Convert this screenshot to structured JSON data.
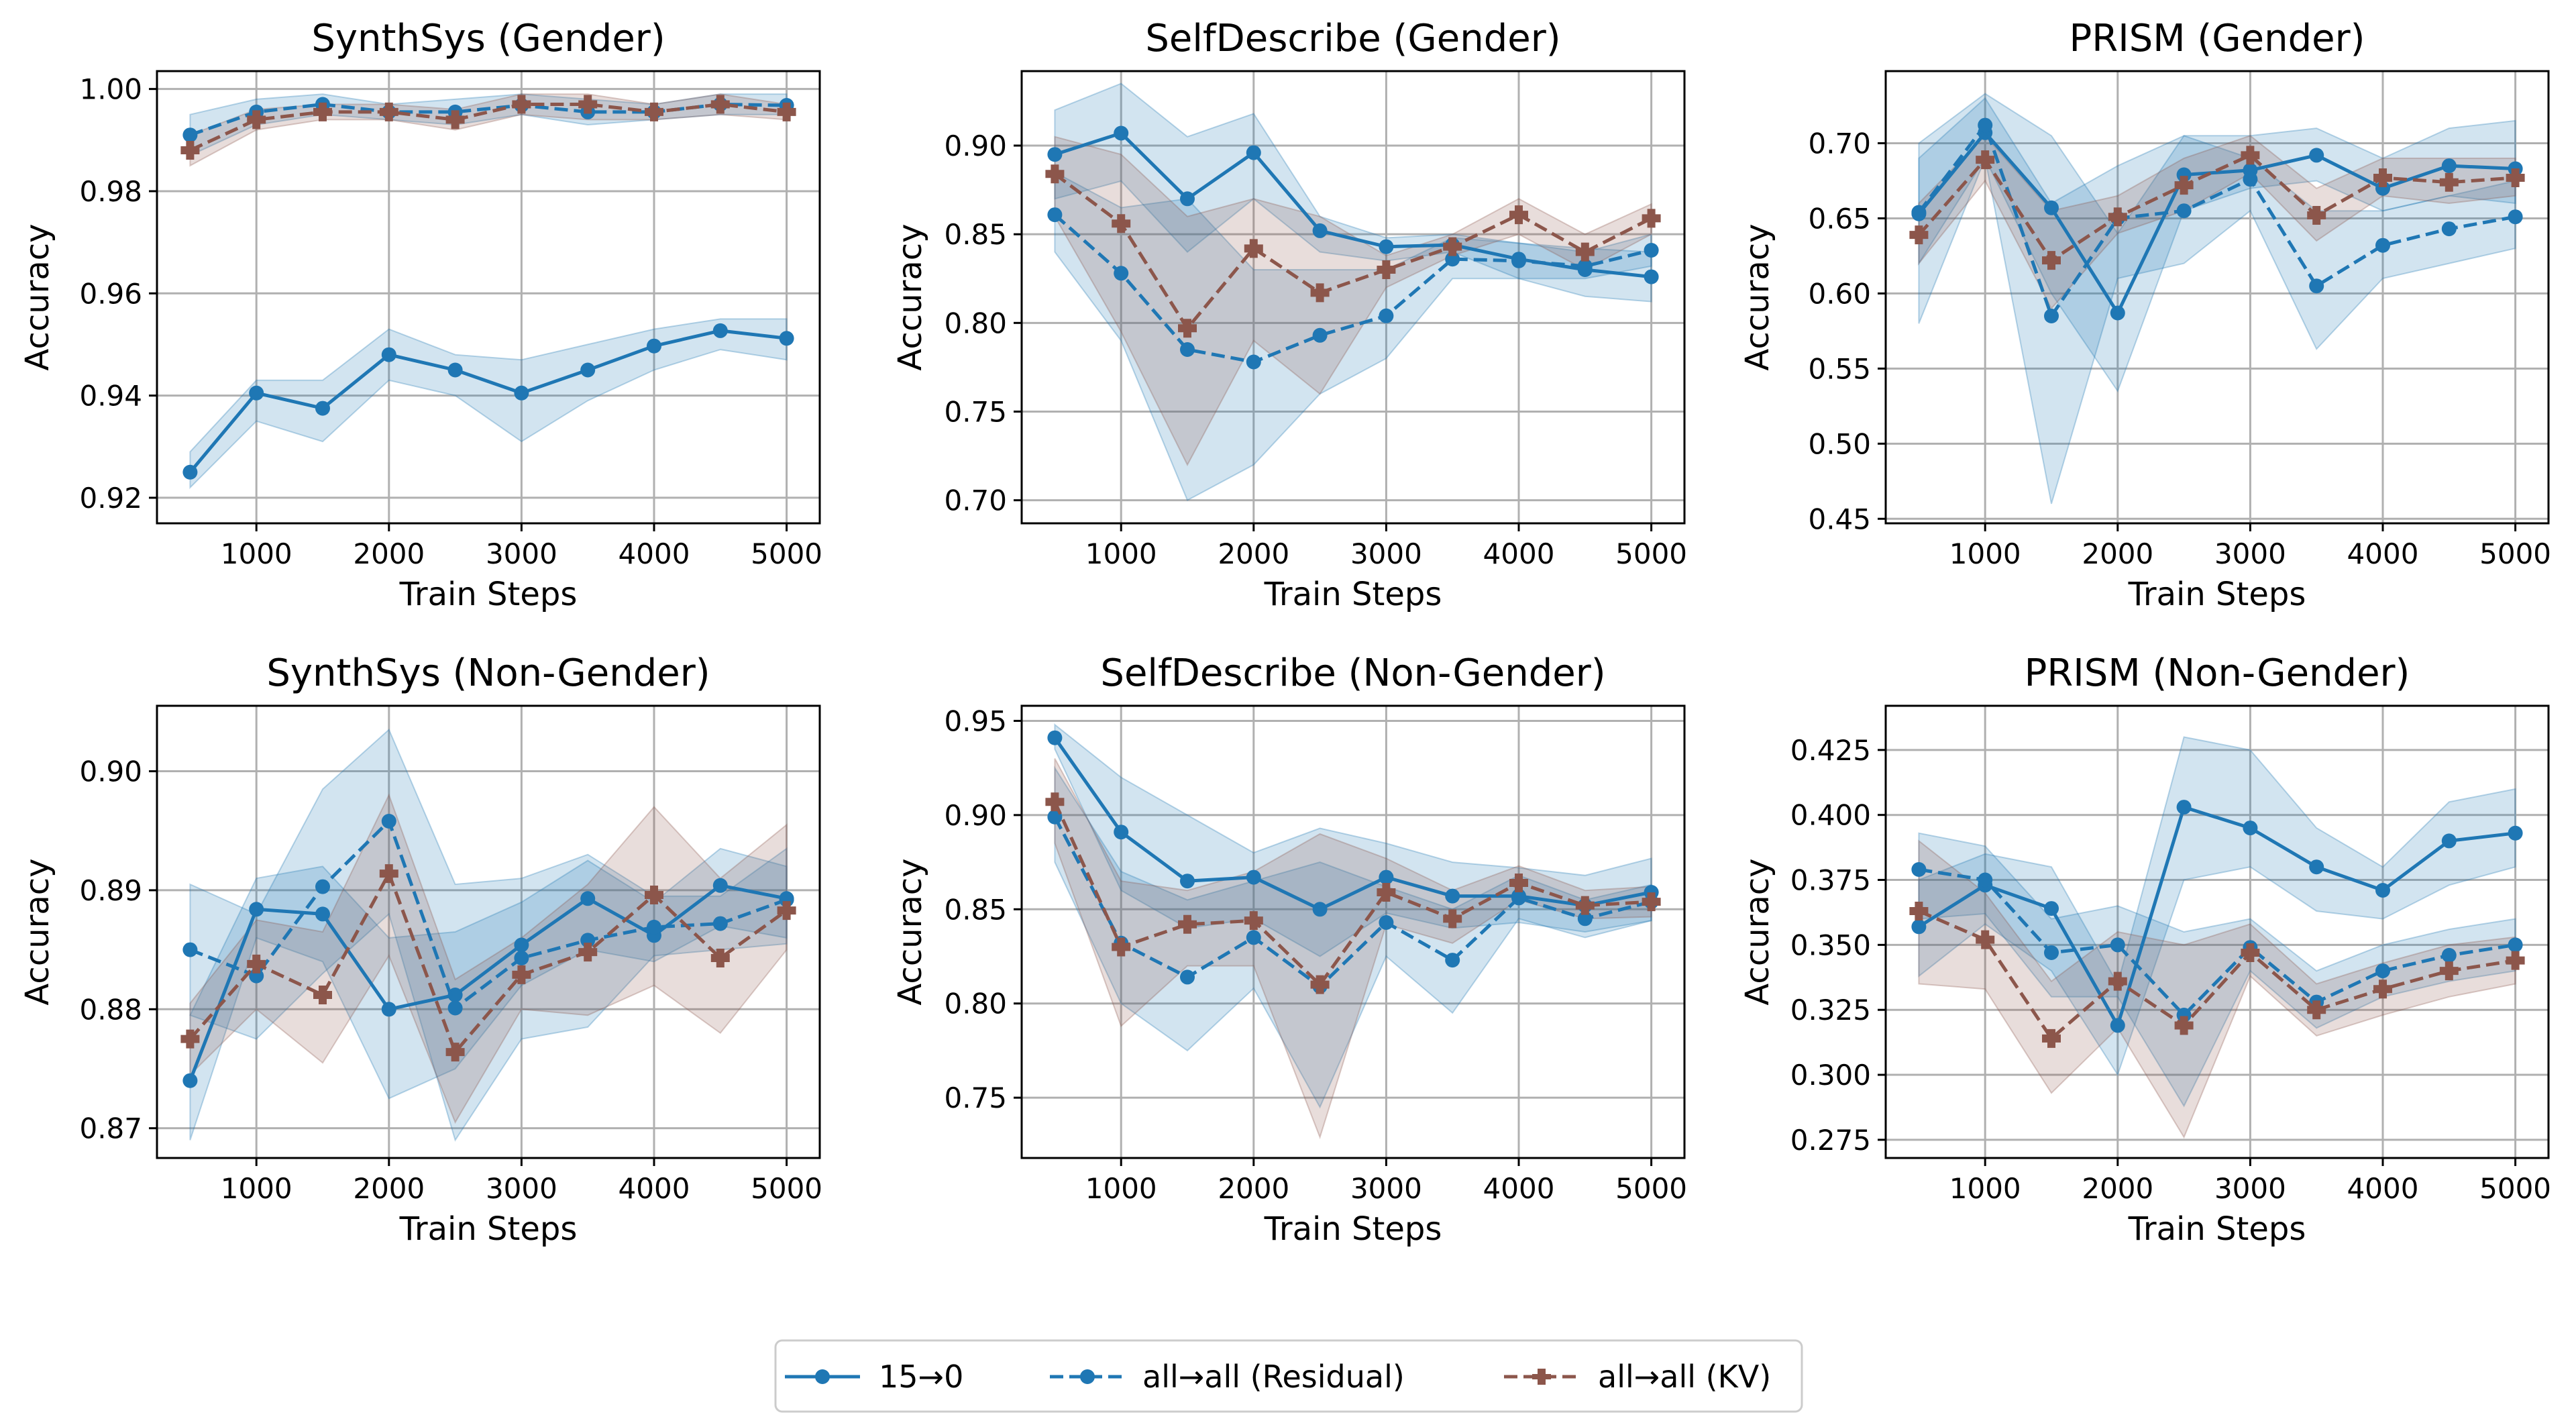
{
  "colors": {
    "blue": "#1f77b4",
    "brown": "#8c564b",
    "grid": "#b0b0b0"
  },
  "chart_data": [
    {
      "type": "line",
      "title": "SynthSys (Gender)",
      "xlabel": "Train Steps",
      "ylabel": "Accuracy",
      "x": [
        500,
        1000,
        1500,
        2000,
        2500,
        3000,
        3500,
        4000,
        4500,
        5000
      ],
      "xlim": [
        250,
        5250
      ],
      "ylim": [
        0.915,
        1.0035
      ],
      "xticks": [
        1000,
        2000,
        3000,
        4000,
        5000
      ],
      "xtick_labels": [
        "1000",
        "2000",
        "3000",
        "4000",
        "5000"
      ],
      "yticks": [
        0.92,
        0.94,
        0.96,
        0.98,
        1.0
      ],
      "ytick_labels": [
        "0.92",
        "0.94",
        "0.96",
        "0.98",
        "1.00"
      ],
      "series": [
        {
          "name": "15→0",
          "values": [
            0.925,
            0.9405,
            0.9375,
            0.948,
            0.945,
            0.9405,
            0.945,
            0.9497,
            0.9527,
            0.9512
          ],
          "lower": [
            0.922,
            0.935,
            0.931,
            0.943,
            0.94,
            0.931,
            0.939,
            0.945,
            0.949,
            0.947
          ],
          "upper": [
            0.929,
            0.943,
            0.943,
            0.953,
            0.948,
            0.947,
            0.95,
            0.953,
            0.955,
            0.955
          ]
        },
        {
          "name": "all→all (Residual)",
          "values": [
            0.991,
            0.9955,
            0.997,
            0.9955,
            0.9955,
            0.9968,
            0.9955,
            0.9955,
            0.997,
            0.9968
          ],
          "lower": [
            0.987,
            0.993,
            0.995,
            0.994,
            0.993,
            0.995,
            0.993,
            0.994,
            0.995,
            0.995
          ],
          "upper": [
            0.995,
            0.998,
            0.999,
            0.997,
            0.998,
            0.999,
            0.998,
            0.997,
            0.999,
            0.999
          ]
        },
        {
          "name": "all→all (KV)",
          "values": [
            0.988,
            0.994,
            0.9955,
            0.9955,
            0.994,
            0.997,
            0.997,
            0.9955,
            0.997,
            0.9955
          ],
          "lower": [
            0.985,
            0.992,
            0.994,
            0.994,
            0.992,
            0.995,
            0.994,
            0.994,
            0.995,
            0.994
          ],
          "upper": [
            0.991,
            0.996,
            0.997,
            0.997,
            0.996,
            0.999,
            0.999,
            0.997,
            0.999,
            0.997
          ]
        }
      ]
    },
    {
      "type": "line",
      "title": "SelfDescribe (Gender)",
      "xlabel": "Train Steps",
      "ylabel": "Accuracy",
      "x": [
        500,
        1000,
        1500,
        2000,
        2500,
        3000,
        3500,
        4000,
        4500,
        5000
      ],
      "xlim": [
        250,
        5250
      ],
      "ylim": [
        0.687,
        0.942
      ],
      "xticks": [
        1000,
        2000,
        3000,
        4000,
        5000
      ],
      "xtick_labels": [
        "1000",
        "2000",
        "3000",
        "4000",
        "5000"
      ],
      "yticks": [
        0.7,
        0.75,
        0.8,
        0.85,
        0.9
      ],
      "ytick_labels": [
        "0.70",
        "0.75",
        "0.80",
        "0.85",
        "0.90"
      ],
      "series": [
        {
          "name": "15→0",
          "values": [
            0.895,
            0.907,
            0.87,
            0.896,
            0.852,
            0.843,
            0.844,
            0.836,
            0.83,
            0.826
          ],
          "lower": [
            0.87,
            0.88,
            0.84,
            0.87,
            0.84,
            0.835,
            0.84,
            0.825,
            0.815,
            0.812
          ],
          "upper": [
            0.92,
            0.935,
            0.905,
            0.918,
            0.86,
            0.848,
            0.85,
            0.845,
            0.842,
            0.84
          ]
        },
        {
          "name": "all→all (Residual)",
          "values": [
            0.861,
            0.828,
            0.785,
            0.778,
            0.793,
            0.804,
            0.836,
            0.835,
            0.832,
            0.841
          ],
          "lower": [
            0.84,
            0.79,
            0.7,
            0.72,
            0.76,
            0.78,
            0.825,
            0.825,
            0.825,
            0.832
          ],
          "upper": [
            0.885,
            0.865,
            0.87,
            0.83,
            0.83,
            0.83,
            0.848,
            0.845,
            0.84,
            0.85
          ]
        },
        {
          "name": "all→all (KV)",
          "values": [
            0.884,
            0.856,
            0.797,
            0.842,
            0.817,
            0.83,
            0.843,
            0.861,
            0.84,
            0.859
          ],
          "lower": [
            0.86,
            0.795,
            0.72,
            0.79,
            0.76,
            0.82,
            0.838,
            0.85,
            0.83,
            0.85
          ],
          "upper": [
            0.905,
            0.895,
            0.86,
            0.87,
            0.86,
            0.838,
            0.85,
            0.87,
            0.85,
            0.867
          ]
        }
      ]
    },
    {
      "type": "line",
      "title": "PRISM (Gender)",
      "xlabel": "Train Steps",
      "ylabel": "Accuracy",
      "x": [
        500,
        1000,
        1500,
        2000,
        2500,
        3000,
        3500,
        4000,
        4500,
        5000
      ],
      "xlim": [
        250,
        5250
      ],
      "ylim": [
        0.447,
        0.748
      ],
      "xticks": [
        1000,
        2000,
        3000,
        4000,
        5000
      ],
      "xtick_labels": [
        "1000",
        "2000",
        "3000",
        "4000",
        "5000"
      ],
      "yticks": [
        0.45,
        0.5,
        0.55,
        0.6,
        0.65,
        0.7
      ],
      "ytick_labels": [
        "0.45",
        "0.50",
        "0.55",
        "0.60",
        "0.65",
        "0.70"
      ],
      "series": [
        {
          "name": "15→0",
          "values": [
            0.653,
            0.707,
            0.657,
            0.587,
            0.679,
            0.682,
            0.692,
            0.67,
            0.685,
            0.683
          ],
          "lower": [
            0.58,
            0.69,
            0.6,
            0.535,
            0.655,
            0.67,
            0.675,
            0.655,
            0.665,
            0.66
          ],
          "upper": [
            0.7,
            0.733,
            0.705,
            0.64,
            0.705,
            0.705,
            0.71,
            0.69,
            0.71,
            0.715
          ]
        },
        {
          "name": "all→all (Residual)",
          "values": [
            0.654,
            0.712,
            0.585,
            0.65,
            0.655,
            0.676,
            0.605,
            0.632,
            0.643,
            0.651
          ],
          "lower": [
            0.62,
            0.69,
            0.46,
            0.61,
            0.62,
            0.655,
            0.563,
            0.61,
            0.62,
            0.63
          ],
          "upper": [
            0.69,
            0.73,
            0.66,
            0.685,
            0.705,
            0.69,
            0.655,
            0.655,
            0.665,
            0.675
          ]
        },
        {
          "name": "all→all (KV)",
          "values": [
            0.639,
            0.689,
            0.622,
            0.651,
            0.672,
            0.692,
            0.652,
            0.677,
            0.674,
            0.677
          ],
          "lower": [
            0.62,
            0.675,
            0.59,
            0.64,
            0.655,
            0.68,
            0.635,
            0.665,
            0.66,
            0.665
          ],
          "upper": [
            0.66,
            0.705,
            0.655,
            0.665,
            0.69,
            0.705,
            0.67,
            0.69,
            0.69,
            0.69
          ]
        }
      ]
    },
    {
      "type": "line",
      "title": "SynthSys (Non-Gender)",
      "xlabel": "Train Steps",
      "ylabel": "Accuracy",
      "x": [
        500,
        1000,
        1500,
        2000,
        2500,
        3000,
        3500,
        4000,
        4500,
        5000
      ],
      "xlim": [
        250,
        5250
      ],
      "ylim": [
        0.8675,
        0.9055
      ],
      "xticks": [
        1000,
        2000,
        3000,
        4000,
        5000
      ],
      "xtick_labels": [
        "1000",
        "2000",
        "3000",
        "4000",
        "5000"
      ],
      "yticks": [
        0.87,
        0.88,
        0.89,
        0.9
      ],
      "ytick_labels": [
        "0.87",
        "0.88",
        "0.89",
        "0.90"
      ],
      "series": [
        {
          "name": "15→0",
          "values": [
            0.874,
            0.8884,
            0.888,
            0.88,
            0.8812,
            0.8854,
            0.8893,
            0.8862,
            0.8904,
            0.8893
          ],
          "lower": [
            0.869,
            0.886,
            0.884,
            0.8725,
            0.875,
            0.882,
            0.885,
            0.884,
            0.887,
            0.886
          ],
          "upper": [
            0.8795,
            0.891,
            0.892,
            0.886,
            0.8865,
            0.889,
            0.8925,
            0.889,
            0.8935,
            0.892
          ]
        },
        {
          "name": "all→all (Residual)",
          "values": [
            0.885,
            0.8828,
            0.8903,
            0.8958,
            0.8801,
            0.8843,
            0.8858,
            0.8869,
            0.8872,
            0.8892
          ],
          "lower": [
            0.8795,
            0.8775,
            0.883,
            0.888,
            0.869,
            0.8775,
            0.8785,
            0.8845,
            0.885,
            0.8855
          ],
          "upper": [
            0.8905,
            0.888,
            0.8985,
            0.9035,
            0.8905,
            0.891,
            0.893,
            0.8895,
            0.8895,
            0.8935
          ]
        },
        {
          "name": "all→all (KV)",
          "values": [
            0.8775,
            0.8838,
            0.8812,
            0.8914,
            0.8764,
            0.8829,
            0.8848,
            0.8896,
            0.8843,
            0.8883
          ],
          "lower": [
            0.8745,
            0.88,
            0.8755,
            0.8845,
            0.8705,
            0.88,
            0.8795,
            0.882,
            0.878,
            0.885
          ],
          "upper": [
            0.8805,
            0.8875,
            0.8865,
            0.898,
            0.8825,
            0.886,
            0.8905,
            0.897,
            0.891,
            0.8955
          ]
        }
      ]
    },
    {
      "type": "line",
      "title": "SelfDescribe (Non-Gender)",
      "xlabel": "Train Steps",
      "ylabel": "Accuracy",
      "x": [
        500,
        1000,
        1500,
        2000,
        2500,
        3000,
        3500,
        4000,
        4500,
        5000
      ],
      "xlim": [
        250,
        5250
      ],
      "ylim": [
        0.718,
        0.958
      ],
      "xticks": [
        1000,
        2000,
        3000,
        4000,
        5000
      ],
      "xtick_labels": [
        "1000",
        "2000",
        "3000",
        "4000",
        "5000"
      ],
      "yticks": [
        0.75,
        0.8,
        0.85,
        0.9,
        0.95
      ],
      "ytick_labels": [
        "0.75",
        "0.80",
        "0.85",
        "0.90",
        "0.95"
      ],
      "series": [
        {
          "name": "15→0",
          "values": [
            0.941,
            0.891,
            0.865,
            0.867,
            0.85,
            0.867,
            0.857,
            0.857,
            0.852,
            0.859
          ],
          "lower": [
            0.935,
            0.86,
            0.84,
            0.845,
            0.825,
            0.848,
            0.84,
            0.843,
            0.838,
            0.844
          ],
          "upper": [
            0.948,
            0.92,
            0.9,
            0.88,
            0.893,
            0.885,
            0.875,
            0.872,
            0.868,
            0.877
          ]
        },
        {
          "name": "all→all (Residual)",
          "values": [
            0.899,
            0.832,
            0.814,
            0.835,
            0.809,
            0.843,
            0.823,
            0.856,
            0.845,
            0.854
          ],
          "lower": [
            0.875,
            0.8,
            0.775,
            0.808,
            0.745,
            0.825,
            0.795,
            0.845,
            0.835,
            0.844
          ],
          "upper": [
            0.925,
            0.87,
            0.855,
            0.865,
            0.875,
            0.862,
            0.85,
            0.868,
            0.855,
            0.863
          ]
        },
        {
          "name": "all→all (KV)",
          "values": [
            0.907,
            0.83,
            0.842,
            0.844,
            0.81,
            0.859,
            0.845,
            0.864,
            0.852,
            0.854
          ],
          "lower": [
            0.885,
            0.788,
            0.82,
            0.82,
            0.729,
            0.842,
            0.832,
            0.855,
            0.845,
            0.846
          ],
          "upper": [
            0.93,
            0.865,
            0.86,
            0.87,
            0.89,
            0.877,
            0.86,
            0.873,
            0.86,
            0.862
          ]
        }
      ]
    },
    {
      "type": "line",
      "title": "PRISM (Non-Gender)",
      "xlabel": "Train Steps",
      "ylabel": "Accuracy",
      "x": [
        500,
        1000,
        1500,
        2000,
        2500,
        3000,
        3500,
        4000,
        4500,
        5000
      ],
      "xlim": [
        250,
        5250
      ],
      "ylim": [
        0.268,
        0.442
      ],
      "xticks": [
        1000,
        2000,
        3000,
        4000,
        5000
      ],
      "xtick_labels": [
        "1000",
        "2000",
        "3000",
        "4000",
        "5000"
      ],
      "yticks": [
        0.275,
        0.3,
        0.325,
        0.35,
        0.375,
        0.4,
        0.425
      ],
      "ytick_labels": [
        "0.275",
        "0.300",
        "0.325",
        "0.350",
        "0.375",
        "0.400",
        "0.425"
      ],
      "series": [
        {
          "name": "15→0",
          "values": [
            0.357,
            0.373,
            0.364,
            0.319,
            0.403,
            0.395,
            0.38,
            0.371,
            0.39,
            0.393
          ],
          "lower": [
            0.338,
            0.358,
            0.34,
            0.3,
            0.375,
            0.38,
            0.363,
            0.36,
            0.373,
            0.38
          ],
          "upper": [
            0.375,
            0.385,
            0.38,
            0.335,
            0.43,
            0.425,
            0.395,
            0.38,
            0.405,
            0.41
          ]
        },
        {
          "name": "all→all (Residual)",
          "values": [
            0.379,
            0.375,
            0.347,
            0.35,
            0.323,
            0.349,
            0.328,
            0.34,
            0.346,
            0.35
          ],
          "lower": [
            0.36,
            0.362,
            0.33,
            0.33,
            0.288,
            0.34,
            0.318,
            0.33,
            0.336,
            0.34
          ],
          "upper": [
            0.393,
            0.388,
            0.36,
            0.365,
            0.355,
            0.36,
            0.34,
            0.35,
            0.356,
            0.36
          ]
        },
        {
          "name": "all→all (KV)",
          "values": [
            0.363,
            0.352,
            0.314,
            0.336,
            0.319,
            0.347,
            0.325,
            0.333,
            0.34,
            0.344
          ],
          "lower": [
            0.335,
            0.333,
            0.293,
            0.318,
            0.276,
            0.338,
            0.315,
            0.323,
            0.33,
            0.335
          ],
          "upper": [
            0.39,
            0.37,
            0.336,
            0.355,
            0.35,
            0.358,
            0.335,
            0.343,
            0.35,
            0.353
          ]
        }
      ]
    }
  ],
  "legend": {
    "items": [
      "15→0",
      "all→all (Residual)",
      "all→all (KV)"
    ]
  }
}
